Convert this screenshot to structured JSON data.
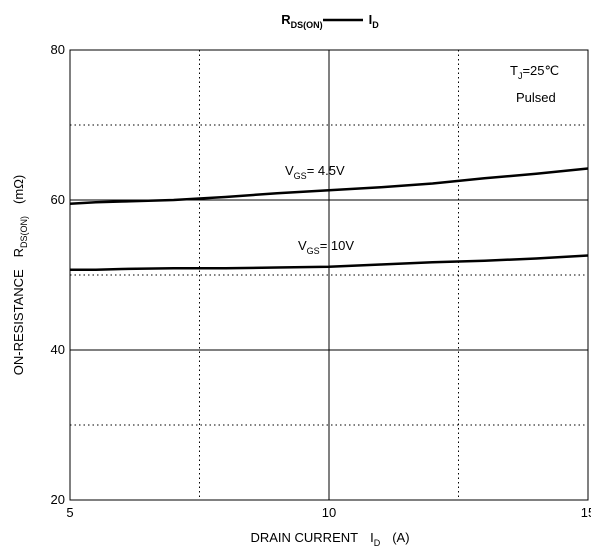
{
  "chart_data": {
    "type": "line",
    "title": [
      {
        "text": "R"
      },
      {
        "text": "DS(ON)",
        "sub": true
      },
      {
        "text": "I"
      },
      {
        "text": "D",
        "sub": true
      }
    ],
    "y_label": [
      {
        "text": "ON-RESISTANCE"
      },
      {
        "text": "R"
      },
      {
        "text": "DS(ON)",
        "sub": true
      },
      {
        "text": "(mΩ)"
      }
    ],
    "x_label": [
      {
        "text": "DRAIN CURRENT"
      },
      {
        "text": "I"
      },
      {
        "text": "D",
        "sub": true
      },
      {
        "text": "(A)"
      }
    ],
    "annotations": [
      [
        {
          "text": "T"
        },
        {
          "text": "J",
          "sub": true
        },
        {
          "text": "=25℃"
        }
      ],
      [
        {
          "text": "Pulsed"
        }
      ],
      [
        {
          "text": "V"
        },
        {
          "text": "GS",
          "sub": true
        },
        {
          "text": "= 4.5V"
        }
      ],
      [
        {
          "text": "V"
        },
        {
          "text": "GS",
          "sub": true
        },
        {
          "text": "= 10V"
        }
      ]
    ],
    "xlim": [
      5,
      15
    ],
    "ylim": [
      20,
      80
    ],
    "xticks": [
      5,
      10,
      15
    ],
    "yticks": [
      20,
      40,
      60,
      80
    ],
    "minor_xticks": [
      7.5,
      12.5
    ],
    "minor_yticks": [
      30,
      50,
      70
    ],
    "grid": true,
    "series": [
      {
        "color": "#000000",
        "x": [
          5,
          5.5,
          6,
          7,
          8,
          9,
          10,
          11,
          12,
          13,
          14,
          15
        ],
        "values": [
          59.5,
          59.7,
          59.8,
          60.0,
          60.4,
          60.9,
          61.3,
          61.7,
          62.2,
          62.9,
          63.5,
          64.2
        ]
      },
      {
        "color": "#000000",
        "x": [
          5,
          5.5,
          6,
          7,
          8,
          9,
          10,
          11,
          12,
          13,
          14,
          15
        ],
        "values": [
          50.7,
          50.7,
          50.8,
          50.9,
          50.9,
          51.0,
          51.1,
          51.4,
          51.7,
          51.9,
          52.2,
          52.6
        ]
      }
    ]
  }
}
